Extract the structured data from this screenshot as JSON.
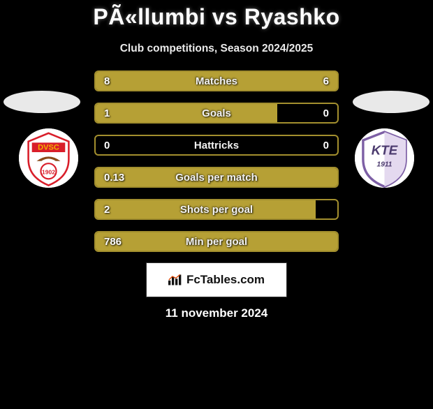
{
  "title": "PÃ«llumbi vs Ryashko",
  "subtitle": "Club competitions, Season 2024/2025",
  "date": "11 november 2024",
  "footer_brand": "FcTables.com",
  "colors": {
    "bar_fill": "#b6a035",
    "bar_border": "#a38f2e",
    "background": "#000000",
    "text": "#ffffff"
  },
  "badges": {
    "left": {
      "abbr": "DVSC",
      "year": "1902",
      "primary": "#d91e2a",
      "secondary": "#f2b200"
    },
    "right": {
      "abbr": "KTE",
      "year": "1911",
      "primary": "#7d5fa5",
      "secondary": "#ffffff"
    }
  },
  "bars": [
    {
      "label": "Matches",
      "left_val": "8",
      "right_val": "6",
      "left_pct": 100,
      "right_pct": 36
    },
    {
      "label": "Goals",
      "left_val": "1",
      "right_val": "0",
      "left_pct": 75,
      "right_pct": 0
    },
    {
      "label": "Hattricks",
      "left_val": "0",
      "right_val": "0",
      "left_pct": 0,
      "right_pct": 0
    },
    {
      "label": "Goals per match",
      "left_val": "0.13",
      "right_val": "",
      "left_pct": 100,
      "right_pct": 0
    },
    {
      "label": "Shots per goal",
      "left_val": "2",
      "right_val": "",
      "left_pct": 91,
      "right_pct": 0
    },
    {
      "label": "Min per goal",
      "left_val": "786",
      "right_val": "",
      "left_pct": 100,
      "right_pct": 0
    }
  ]
}
